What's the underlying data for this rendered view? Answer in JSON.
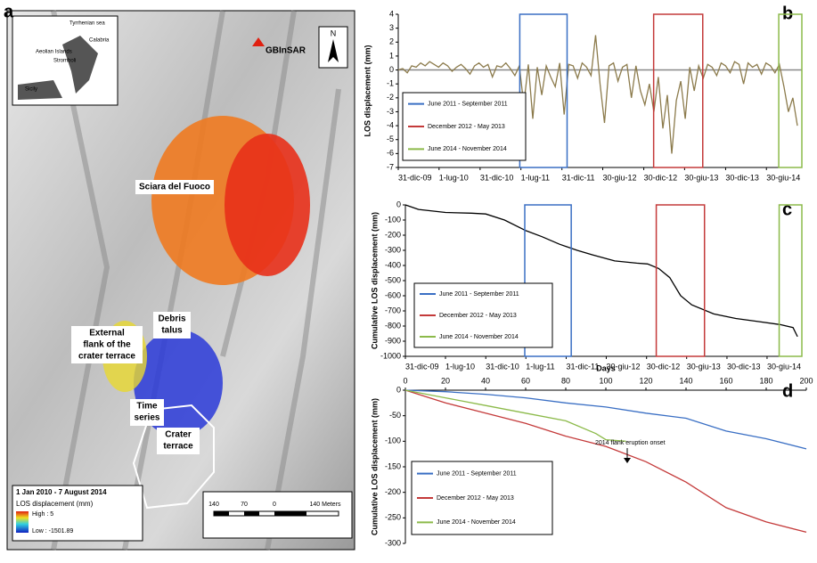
{
  "panel_labels": [
    "a",
    "b",
    "c",
    "d"
  ],
  "map": {
    "inset": {
      "sea": "Tyrrhenian sea",
      "calabria": "Calabria",
      "aeolian": "Aeolian Islands",
      "stromboli": "Stromboli",
      "sicily": "Sicily"
    },
    "gbinsar": "GBInSAR",
    "north": "N",
    "sciara": "Sciara del Fuoco",
    "debris": [
      "Debris",
      "talus"
    ],
    "external": [
      "External",
      "flank of the",
      "crater terrace"
    ],
    "time_series": [
      "Time",
      "series"
    ],
    "crater": [
      "Crater",
      "terrace"
    ],
    "legend": {
      "period": "1 Jan 2010 - 7 August 2014",
      "title": "LOS displacement (mm)",
      "high": "High : 5",
      "low": "Low : -1501.89"
    },
    "scale": [
      "140",
      "70",
      "0",
      "140 Meters"
    ]
  },
  "chart_data": [
    {
      "type": "line",
      "ylabel": "LOS displacement (mm)",
      "color": "#8c7b4c",
      "xlim": [
        0,
        1800
      ],
      "xticks": [
        {
          "value": 0,
          "label": "31-dic-09"
        },
        {
          "value": 182,
          "label": "1-lug-10"
        },
        {
          "value": 365,
          "label": "31-dic-10"
        },
        {
          "value": 547,
          "label": "1-lug-11"
        },
        {
          "value": 730,
          "label": "31-dic-11"
        },
        {
          "value": 912,
          "label": "30-giu-12"
        },
        {
          "value": 1095,
          "label": "30-dic-12"
        },
        {
          "value": 1277,
          "label": "30-giu-13"
        },
        {
          "value": 1460,
          "label": "30-dic-13"
        },
        {
          "value": 1642,
          "label": "30-giu-14"
        }
      ],
      "ylim": [
        -7,
        4
      ],
      "yticks": [
        4,
        3,
        2,
        1,
        0,
        -1,
        -2,
        -3,
        -4,
        -5,
        -6,
        -7
      ],
      "x": [
        0,
        20,
        40,
        60,
        80,
        100,
        120,
        140,
        160,
        180,
        200,
        220,
        240,
        260,
        280,
        300,
        320,
        340,
        360,
        380,
        400,
        420,
        440,
        460,
        480,
        500,
        520,
        540,
        560,
        580,
        600,
        620,
        640,
        660,
        680,
        700,
        720,
        740,
        760,
        780,
        800,
        820,
        840,
        860,
        880,
        900,
        920,
        940,
        960,
        980,
        1000,
        1020,
        1040,
        1060,
        1080,
        1100,
        1120,
        1140,
        1160,
        1180,
        1200,
        1220,
        1240,
        1260,
        1280,
        1300,
        1320,
        1340,
        1360,
        1380,
        1400,
        1420,
        1440,
        1460,
        1480,
        1500,
        1520,
        1540,
        1560,
        1580,
        1600,
        1620,
        1640,
        1660,
        1680,
        1700,
        1720,
        1740,
        1760,
        1780
      ],
      "values": [
        0,
        0.1,
        -0.2,
        0.3,
        0.2,
        0.5,
        0.3,
        0.6,
        0.4,
        0.2,
        0.5,
        0.3,
        -0.1,
        0.2,
        0.4,
        0.1,
        -0.3,
        0.3,
        0.5,
        0.2,
        0.4,
        -0.5,
        0.3,
        0.2,
        0.5,
        0.1,
        -0.4,
        0.3,
        -2.5,
        0.4,
        -3.5,
        0.2,
        -1.8,
        0.3,
        -0.5,
        -1.2,
        0.5,
        -3.2,
        0.4,
        0.3,
        -0.6,
        0.5,
        0.2,
        -0.4,
        2.5,
        -1.0,
        -3.8,
        0.3,
        0.5,
        -0.8,
        0.2,
        0.4,
        -2.0,
        0.3,
        -1.5,
        -2.5,
        -1.0,
        -3.0,
        -0.5,
        -4.2,
        -1.8,
        -6.0,
        -2.2,
        -0.8,
        -3.5,
        0.2,
        -1.5,
        0.3,
        -0.6,
        0.4,
        0.2,
        -0.4,
        0.5,
        0.3,
        -0.2,
        0.6,
        0.4,
        -1.0,
        0.5,
        0.2,
        0.4,
        -0.3,
        0.5,
        0.3,
        -0.2,
        0.4,
        -1.2,
        -3.0,
        -2.0,
        -4.0
      ],
      "periods": [
        {
          "name": "June 2011 - September 2011",
          "color": "#3a6fc4",
          "start": 542,
          "end": 753
        },
        {
          "name": "December 2012 - May 2013",
          "color": "#c43a3a",
          "start": 1139,
          "end": 1358
        },
        {
          "name": "June 2014 - November 2014",
          "color": "#8cba4a",
          "start": 1697,
          "end": 1800
        }
      ]
    },
    {
      "type": "line",
      "ylabel": "Cumulative LOS displacement (mm)",
      "color": "#000000",
      "xlim": [
        0,
        1800
      ],
      "xticks": [
        {
          "value": 0,
          "label": "31-dic-09"
        },
        {
          "value": 182,
          "label": "1-lug-10"
        },
        {
          "value": 365,
          "label": "31-dic-10"
        },
        {
          "value": 547,
          "label": "1-lug-11"
        },
        {
          "value": 730,
          "label": "31-dic-11"
        },
        {
          "value": 912,
          "label": "30-giu-12"
        },
        {
          "value": 1095,
          "label": "30-dic-12"
        },
        {
          "value": 1277,
          "label": "30-giu-13"
        },
        {
          "value": 1460,
          "label": "30-dic-13"
        },
        {
          "value": 1642,
          "label": "30-giu-14"
        }
      ],
      "ylim": [
        -1000,
        0
      ],
      "yticks": [
        0,
        -100,
        -200,
        -300,
        -400,
        -500,
        -600,
        -700,
        -800,
        -900,
        -1000
      ],
      "x": [
        0,
        60,
        182,
        300,
        365,
        450,
        547,
        620,
        700,
        780,
        850,
        950,
        1050,
        1100,
        1150,
        1200,
        1250,
        1300,
        1400,
        1500,
        1600,
        1700,
        1760,
        1780
      ],
      "values": [
        0,
        -30,
        -50,
        -55,
        -60,
        -100,
        -170,
        -210,
        -260,
        -300,
        -330,
        -370,
        -385,
        -390,
        -420,
        -480,
        -600,
        -660,
        -720,
        -750,
        -770,
        -790,
        -810,
        -870
      ],
      "periods": [
        {
          "name": "June 2011 - September 2011",
          "color": "#3a6fc4",
          "start": 542,
          "end": 753
        },
        {
          "name": "December 2012 - May 2013",
          "color": "#c43a3a",
          "start": 1139,
          "end": 1358
        },
        {
          "name": "June 2014 - November 2014",
          "color": "#8cba4a",
          "start": 1697,
          "end": 1800
        }
      ]
    },
    {
      "type": "line",
      "xlabel": "Days",
      "ylabel": "Cumulative LOS displacement (mm)",
      "annotation": "2014 flank eruption onset",
      "xlim": [
        0,
        200
      ],
      "xticks": [
        0,
        20,
        40,
        60,
        80,
        100,
        120,
        140,
        160,
        180,
        200
      ],
      "ylim": [
        -300,
        0
      ],
      "yticks": [
        0,
        -50,
        -100,
        -150,
        -200,
        -250,
        -300
      ],
      "series": [
        {
          "name": "June 2011 - September 2011",
          "color": "#3a6fc4",
          "x": [
            0,
            20,
            40,
            60,
            80,
            100,
            120,
            140,
            160,
            180,
            200
          ],
          "values": [
            0,
            -3,
            -8,
            -15,
            -25,
            -33,
            -45,
            -55,
            -80,
            -95,
            -115
          ]
        },
        {
          "name": "December 2012 - May 2013",
          "color": "#c43a3a",
          "x": [
            0,
            20,
            40,
            60,
            80,
            100,
            120,
            140,
            160,
            180,
            200
          ],
          "values": [
            0,
            -25,
            -45,
            -65,
            -90,
            -110,
            -140,
            -180,
            -230,
            -258,
            -278
          ]
        },
        {
          "name": "June 2014 - November 2014",
          "color": "#8cba4a",
          "x": [
            0,
            20,
            40,
            60,
            80,
            95,
            100,
            110
          ],
          "values": [
            0,
            -15,
            -30,
            -45,
            -60,
            -85,
            -97,
            -100
          ]
        }
      ]
    }
  ]
}
